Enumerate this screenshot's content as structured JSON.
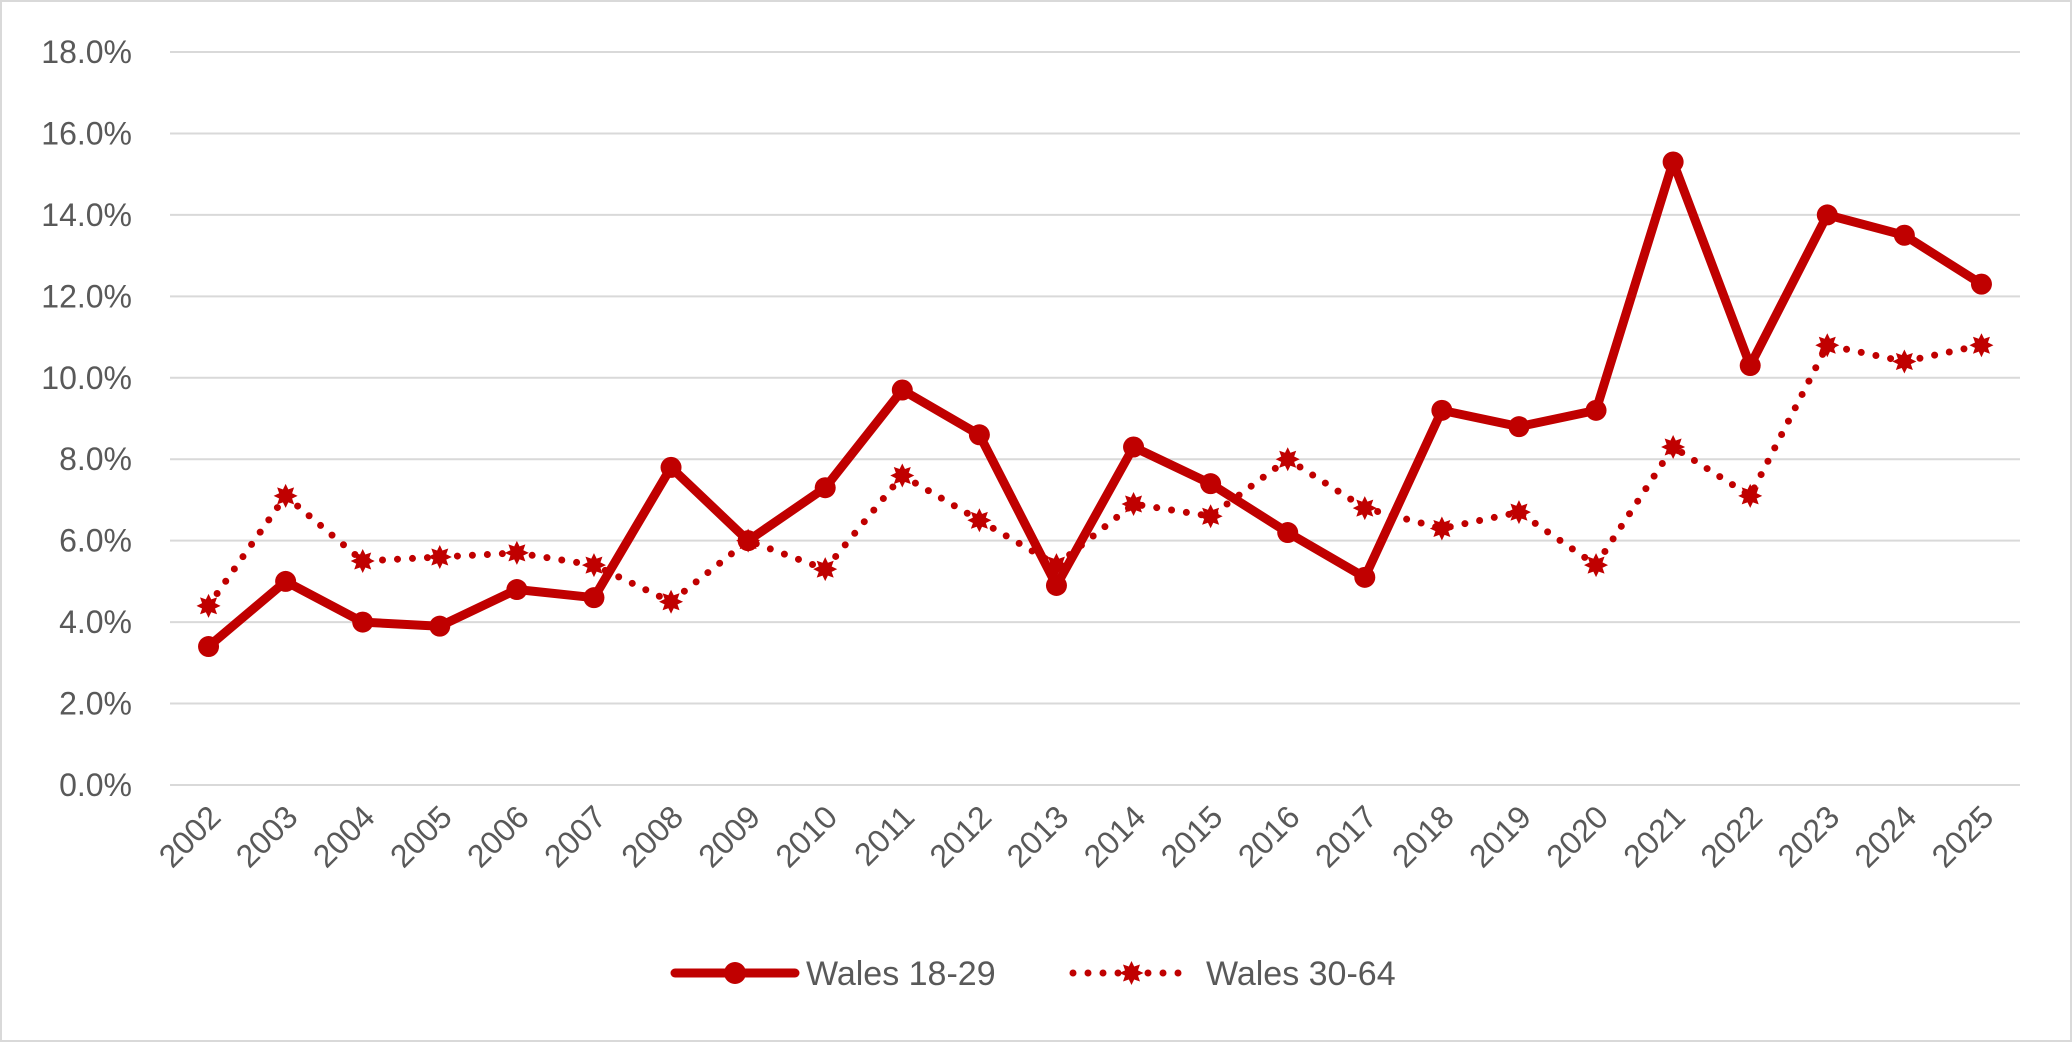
{
  "chart_data": {
    "type": "line",
    "title": "",
    "xlabel": "",
    "ylabel": "",
    "x": [
      "2002",
      "2003",
      "2004",
      "2005",
      "2006",
      "2007",
      "2008",
      "2009",
      "2010",
      "2011",
      "2012",
      "2013",
      "2014",
      "2015",
      "2016",
      "2017",
      "2018",
      "2019",
      "2020",
      "2021",
      "2022",
      "2023",
      "2024",
      "2025"
    ],
    "ylim": [
      0,
      18
    ],
    "y_ticks": [
      "0.0%",
      "2.0%",
      "4.0%",
      "6.0%",
      "8.0%",
      "10.0%",
      "12.0%",
      "14.0%",
      "16.0%",
      "18.0%"
    ],
    "y_tick_values": [
      0,
      2,
      4,
      6,
      8,
      10,
      12,
      14,
      16,
      18
    ],
    "grid": "horizontal",
    "legend_position": "bottom",
    "series": [
      {
        "name": "Wales 18-29",
        "style": "solid",
        "marker": "circle",
        "color": "#C00000",
        "values": [
          3.4,
          5.0,
          4.0,
          3.9,
          4.8,
          4.6,
          7.8,
          6.0,
          7.3,
          9.7,
          8.6,
          4.9,
          8.3,
          7.4,
          6.2,
          5.1,
          9.2,
          8.8,
          9.2,
          15.3,
          10.3,
          14.0,
          13.5,
          12.3
        ]
      },
      {
        "name": "Wales 30-64",
        "style": "dotted",
        "marker": "star",
        "color": "#C00000",
        "values": [
          4.4,
          7.1,
          5.5,
          5.6,
          5.7,
          5.4,
          4.5,
          6.0,
          5.3,
          7.6,
          6.5,
          5.4,
          6.9,
          6.6,
          8.0,
          6.8,
          6.3,
          6.7,
          5.4,
          8.3,
          7.1,
          10.8,
          10.4,
          10.8
        ]
      }
    ]
  }
}
